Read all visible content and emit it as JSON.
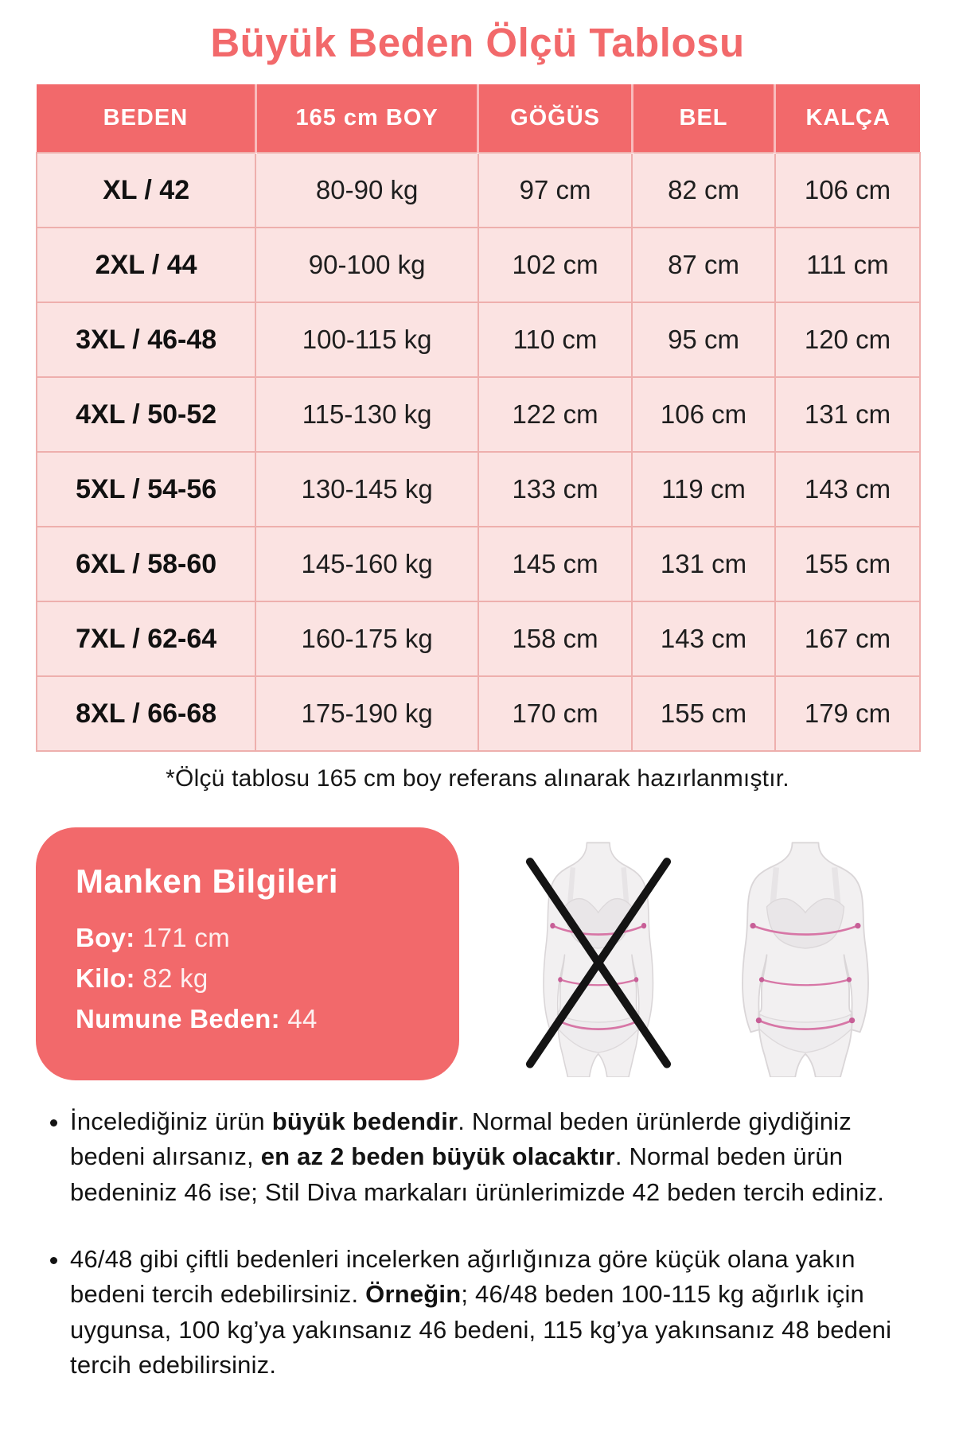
{
  "page": {
    "title": "Büyük Beden Ölçü Tablosu",
    "footnote": "*Ölçü tablosu 165 cm boy referans alınarak hazırlanmıştır."
  },
  "colors": {
    "coral": "#f2696b",
    "row_pink": "#fbe3e2",
    "border_pink": "#eeafad",
    "measure_line_pink": "#d776a6",
    "figure_gray": "#f2f0f1",
    "cross_black": "#141414"
  },
  "size_table": {
    "headers": [
      "BEDEN",
      "165 cm BOY",
      "GÖĞÜS",
      "BEL",
      "KALÇA"
    ],
    "rows": [
      [
        "XL / 42",
        "80-90 kg",
        "97 cm",
        "82 cm",
        "106 cm"
      ],
      [
        "2XL / 44",
        "90-100 kg",
        "102 cm",
        "87 cm",
        "111 cm"
      ],
      [
        "3XL / 46-48",
        "100-115 kg",
        "110 cm",
        "95 cm",
        "120 cm"
      ],
      [
        "4XL / 50-52",
        "115-130 kg",
        "122 cm",
        "106 cm",
        "131 cm"
      ],
      [
        "5XL / 54-56",
        "130-145 kg",
        "133 cm",
        "119 cm",
        "143 cm"
      ],
      [
        "6XL / 58-60",
        "145-160 kg",
        "145 cm",
        "131 cm",
        "155 cm"
      ],
      [
        "7XL / 62-64",
        "160-175 kg",
        "158 cm",
        "143 cm",
        "167 cm"
      ],
      [
        "8XL / 66-68",
        "175-190 kg",
        "170 cm",
        "155 cm",
        "179 cm"
      ]
    ]
  },
  "model_info": {
    "title": "Manken Bilgileri",
    "lines": [
      {
        "label": "Boy",
        "value": "171 cm"
      },
      {
        "label": "Kilo",
        "value": "82 kg"
      },
      {
        "label": "Numune Beden",
        "value": "44"
      }
    ]
  },
  "figures": {
    "wrong_icon": "crossed-out-body-measure-icon",
    "correct_icon": "body-measure-icon"
  },
  "bullets": [
    {
      "segments": [
        {
          "text": "İncelediğiniz ürün ",
          "bold": false
        },
        {
          "text": "büyük bedendir",
          "bold": true
        },
        {
          "text": ". Normal beden ürünlerde giydiğiniz bedeni alırsanız, ",
          "bold": false
        },
        {
          "text": "en az 2 beden büyük olacaktır",
          "bold": true
        },
        {
          "text": ". Normal beden ürün bedeniniz 46 ise; Stil Diva markaları ürünlerimizde 42 beden tercih ediniz.",
          "bold": false
        }
      ]
    },
    {
      "segments": [
        {
          "text": "46/48 gibi çiftli bedenleri incelerken ağırlığınıza göre küçük olana yakın bedeni tercih edebilirsiniz. ",
          "bold": false
        },
        {
          "text": "Örneğin",
          "bold": true
        },
        {
          "text": "; 46/48 beden 100-115 kg ağırlık için uygunsa, 100 kg’ya yakınsanız 46 bedeni, 115 kg’ya yakınsanız 48 bedeni tercih edebilirsiniz.",
          "bold": false
        }
      ]
    }
  ]
}
